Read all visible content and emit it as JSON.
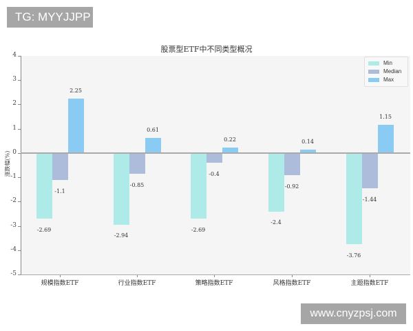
{
  "watermarks": {
    "top": "TG: MYYJJPP",
    "bottom": "www.cnyzpsj.com"
  },
  "colors": {
    "min": "#aeeae8",
    "median": "#aebcdb",
    "max": "#8acbf4",
    "plot_bg": "#f5f5f5"
  },
  "chart_data": {
    "type": "bar",
    "title": "股票型ETF中不同类型概况",
    "xlabel": "",
    "ylabel": "涨跌幅(%)",
    "ylim": [
      -5,
      4
    ],
    "yticks": [
      "4",
      "3",
      "2",
      "1",
      "0",
      "-1",
      "-2",
      "-3",
      "-4",
      "-5"
    ],
    "categories": [
      "规模指数ETF",
      "行业指数ETF",
      "策略指数ETF",
      "风格指数ETF",
      "主题指数ETF"
    ],
    "series": [
      {
        "name": "Min",
        "values": [
          -2.69,
          -2.94,
          -2.69,
          -2.4,
          -3.76
        ],
        "labels": [
          "-2.69",
          "-2.94",
          "-2.69",
          "-2.4",
          "-3.76"
        ]
      },
      {
        "name": "Median",
        "values": [
          -1.1,
          -0.85,
          -0.4,
          -0.92,
          -1.44
        ],
        "labels": [
          "-1.1",
          "-0.85",
          "-0.4",
          "-0.92",
          "-1.44"
        ]
      },
      {
        "name": "Max",
        "values": [
          2.25,
          0.61,
          0.22,
          0.14,
          1.15
        ],
        "labels": [
          "2.25",
          "0.61",
          "0.22",
          "0.14",
          "1.15"
        ]
      }
    ],
    "legend": [
      "Min",
      "Median",
      "Max"
    ],
    "legend_position": "upper right",
    "grid": false
  }
}
